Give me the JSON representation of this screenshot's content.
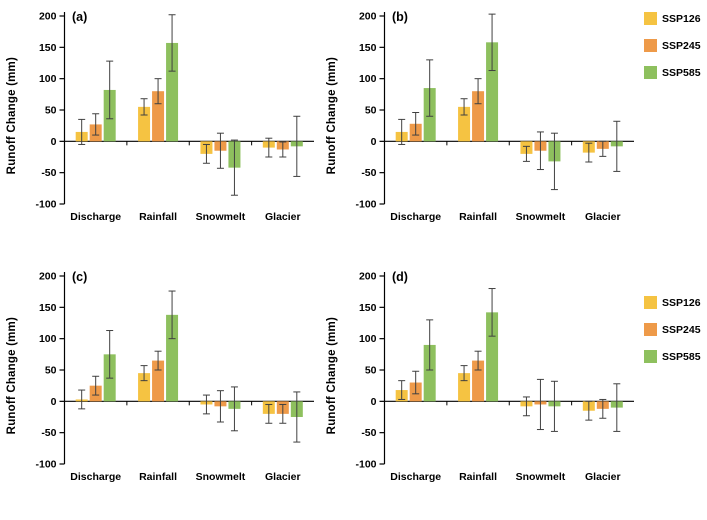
{
  "figure": {
    "background": "#ffffff",
    "axis_color": "#000000",
    "error_bar_color": "#404040",
    "series_colors": {
      "SSP126": "#F5C342",
      "SSP245": "#EE9A49",
      "SSP585": "#8EC05E"
    }
  },
  "chart_data": {
    "type": "bar",
    "title": "",
    "xlabel": "",
    "ylabel": "Runoff Change (mm)",
    "ylim": [
      -100,
      200
    ],
    "ytick_step": 50,
    "grid": false,
    "legend_position": "right",
    "legend": [
      "SSP126",
      "SSP245",
      "SSP585"
    ],
    "categories": [
      "Discharge",
      "Rainfall",
      "Snowmelt",
      "Glacier"
    ],
    "panels": [
      {
        "label": "(a)",
        "series": [
          {
            "name": "SSP126",
            "values": [
              15,
              55,
              -20,
              -10
            ],
            "errors": [
              20,
              13,
              15,
              15
            ]
          },
          {
            "name": "SSP245",
            "values": [
              27,
              80,
              -15,
              -13
            ],
            "errors": [
              17,
              20,
              28,
              12
            ]
          },
          {
            "name": "SSP585",
            "values": [
              82,
              157,
              -42,
              -8
            ],
            "errors": [
              46,
              45,
              44,
              48
            ]
          }
        ]
      },
      {
        "label": "(b)",
        "series": [
          {
            "name": "SSP126",
            "values": [
              15,
              55,
              -20,
              -18
            ],
            "errors": [
              20,
              13,
              12,
              15
            ]
          },
          {
            "name": "SSP245",
            "values": [
              28,
              80,
              -15,
              -12
            ],
            "errors": [
              18,
              20,
              30,
              12
            ]
          },
          {
            "name": "SSP585",
            "values": [
              85,
              158,
              -32,
              -8
            ],
            "errors": [
              45,
              45,
              45,
              40
            ]
          }
        ]
      },
      {
        "label": "(c)",
        "series": [
          {
            "name": "SSP126",
            "values": [
              3,
              45,
              -5,
              -20
            ],
            "errors": [
              15,
              12,
              15,
              15
            ]
          },
          {
            "name": "SSP245",
            "values": [
              25,
              65,
              -8,
              -20
            ],
            "errors": [
              15,
              15,
              25,
              15
            ]
          },
          {
            "name": "SSP585",
            "values": [
              75,
              138,
              -12,
              -25
            ],
            "errors": [
              38,
              38,
              35,
              40
            ]
          }
        ]
      },
      {
        "label": "(d)",
        "series": [
          {
            "name": "SSP126",
            "values": [
              18,
              45,
              -8,
              -15
            ],
            "errors": [
              15,
              12,
              15,
              15
            ]
          },
          {
            "name": "SSP245",
            "values": [
              30,
              65,
              -5,
              -12
            ],
            "errors": [
              18,
              15,
              40,
              15
            ]
          },
          {
            "name": "SSP585",
            "values": [
              90,
              142,
              -8,
              -10
            ],
            "errors": [
              40,
              38,
              40,
              38
            ]
          }
        ]
      }
    ]
  }
}
